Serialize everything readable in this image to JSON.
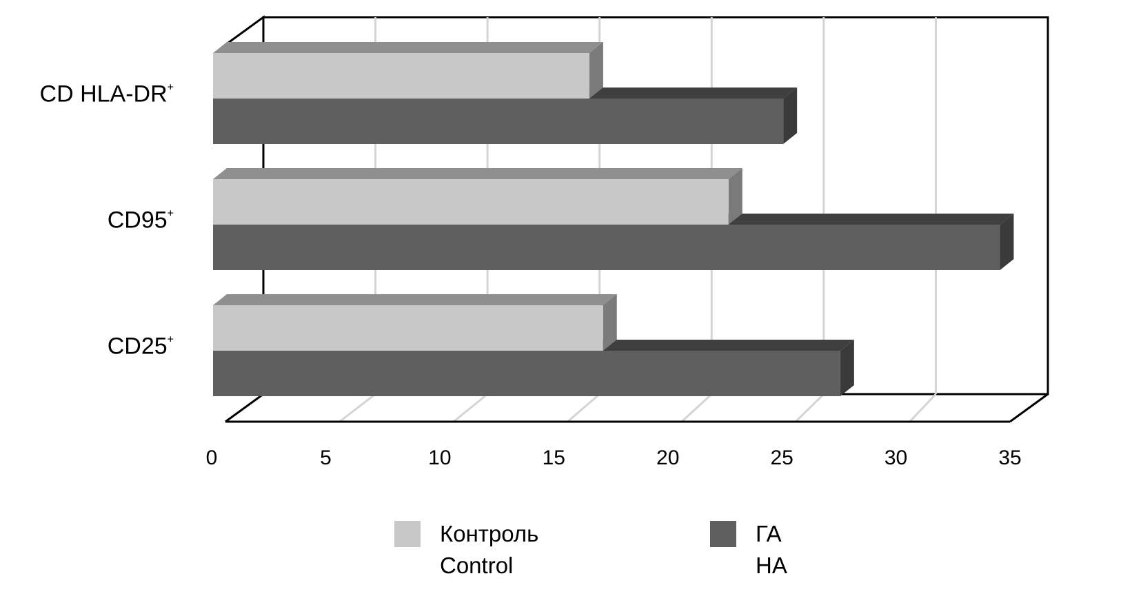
{
  "chart_data": {
    "type": "bar",
    "orientation": "horizontal",
    "style": "3d",
    "categories": [
      "CD HLA-DR",
      "CD95",
      "CD25"
    ],
    "category_superscripts": [
      "+",
      "+",
      "+"
    ],
    "series": [
      {
        "name_ru": "Контроль",
        "name_en": "Control",
        "color": "#c8c8c8",
        "values": [
          16.5,
          22.6,
          17.1
        ]
      },
      {
        "name_ru": "ГА",
        "name_en": "HA",
        "color": "#5f5f5f",
        "values": [
          25.0,
          34.5,
          27.5
        ]
      }
    ],
    "xlim": [
      0,
      35
    ],
    "xticks": [
      "0",
      "5",
      "10",
      "15",
      "20",
      "25",
      "30",
      "35"
    ],
    "grid": true,
    "legend_position": "bottom"
  }
}
